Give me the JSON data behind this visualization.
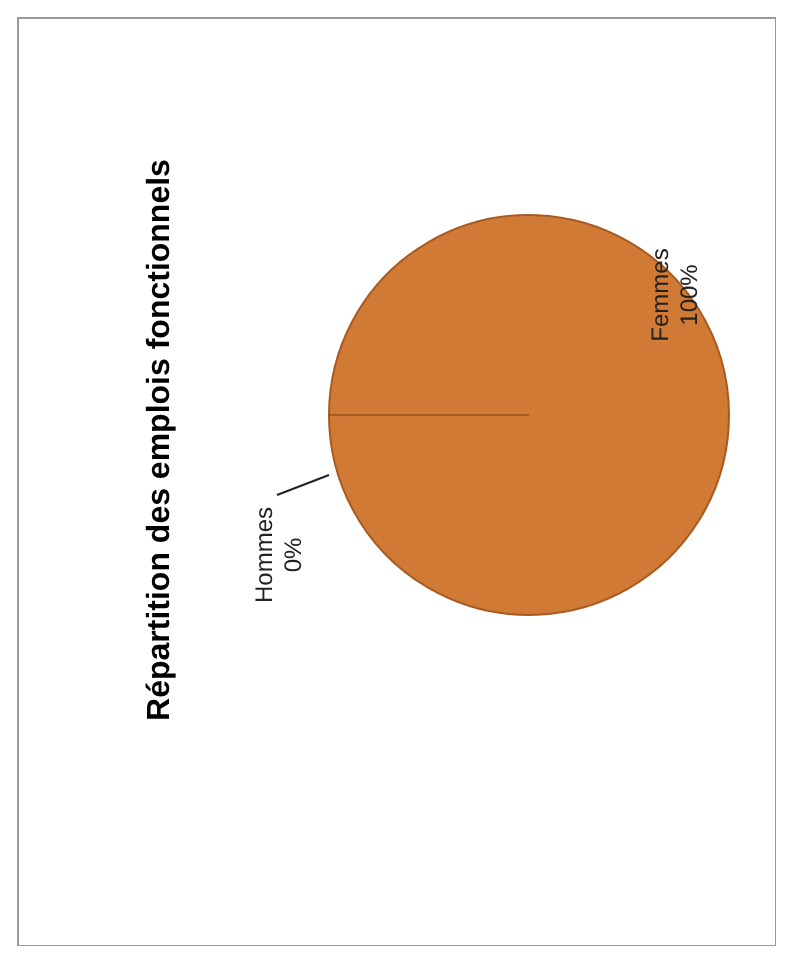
{
  "chart_data": {
    "type": "pie",
    "title": "Répartition des emplois fonctionnels",
    "categories": [
      "Hommes",
      "Femmes"
    ],
    "values": [
      0,
      100
    ],
    "value_labels": [
      "0%",
      "100%"
    ],
    "colors": [
      "#4472c4",
      "#d07a35"
    ],
    "legend": false
  }
}
